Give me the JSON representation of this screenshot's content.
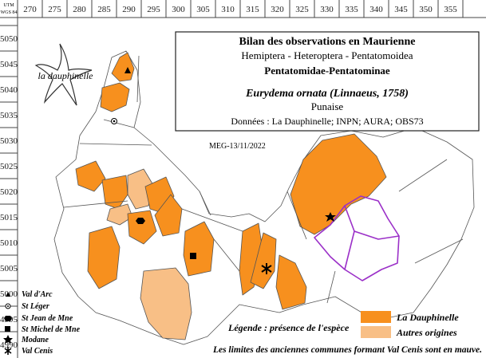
{
  "grid": {
    "corner_top": "UTM",
    "corner_bottom": "WGS 84",
    "x_labels": [
      "270",
      "275",
      "280",
      "285",
      "290",
      "295",
      "300",
      "305",
      "310",
      "315",
      "320",
      "325",
      "330",
      "335",
      "340",
      "345",
      "350",
      "355"
    ],
    "y_labels": [
      "5050",
      "5045",
      "5040",
      "5035",
      "5030",
      "5025",
      "5020",
      "5015",
      "5010",
      "5005",
      "5000",
      "4995",
      "4990"
    ]
  },
  "logo": "la dauphinelle",
  "title_box": {
    "title": "Bilan des observations en Maurienne",
    "taxon": "Hemiptera - Heteroptera - Pentatomoidea",
    "family": "Pentatomidae-Pentatominae",
    "species": "Eurydema ornata (Linnaeus, 1758)",
    "common_name": "Punaise",
    "sources": "Données : La Dauphinelle; INPN; AURA; OBS73"
  },
  "date": "MEG-13/11/2022",
  "towns": [
    "Val d'Arc",
    "St Léger",
    "St Jean de Mne",
    "St Michel de Mne",
    "Modane",
    "Val Cenis"
  ],
  "legend": {
    "title": "Légende : présence de l'espèce",
    "items": [
      "La Dauphinelle",
      "Autres origines"
    ]
  },
  "note": "Les limites des anciennes communes formant Val Cenis sont en mauve."
}
